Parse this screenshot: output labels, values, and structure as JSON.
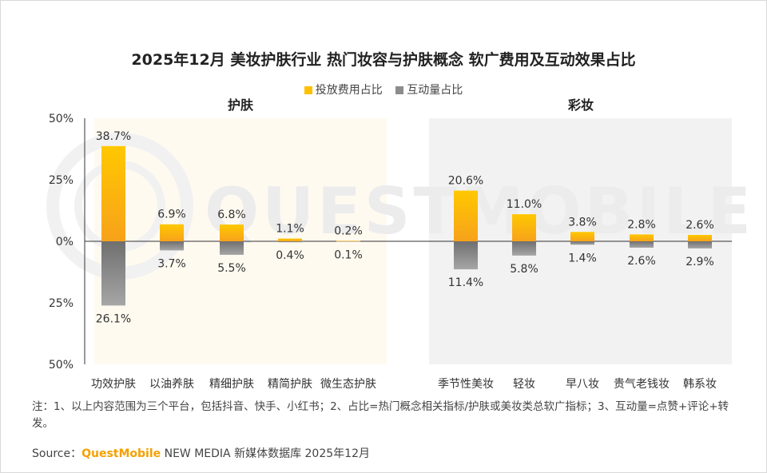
{
  "colors": {
    "spend": "#ffc000",
    "interaction": "#8c8c8c",
    "brand": "#f5a000",
    "skincare_bg": "#fffaf0",
    "makeup_bg": "#f2f2f2"
  },
  "chart_data": {
    "type": "bar",
    "title": "2025年12月 美妆护肤行业 热门妆容与护肤概念 软广费用及互动效果占比",
    "series": [
      {
        "name": "投放费用占比",
        "values": [
          38.7,
          6.9,
          6.8,
          1.1,
          0.2,
          20.6,
          11.0,
          3.8,
          2.8,
          2.6
        ]
      },
      {
        "name": "互动量占比",
        "values": [
          26.1,
          3.7,
          5.5,
          0.4,
          0.1,
          11.4,
          5.8,
          1.4,
          2.6,
          2.9
        ]
      }
    ],
    "categories": [
      "功效护肤",
      "以油养肤",
      "精细护肤",
      "精简护肤",
      "微生态护肤",
      "季节性美妆",
      "轻妆",
      "早八妆",
      "贵气老钱妆",
      "韩系妆"
    ],
    "groups": [
      {
        "name": "护肤",
        "count": 5
      },
      {
        "name": "彩妆",
        "count": 5
      }
    ],
    "y_ticks": [
      "50%",
      "25%",
      "0%",
      "25%",
      "50%"
    ],
    "ylim": [
      -50,
      50
    ],
    "notes": "投放费用占比 plotted upward, 互动量占比 plotted downward (mirrored)",
    "legend_position": "top-center"
  },
  "watermark": "QUESTMOBILE",
  "footer": {
    "note": "注：1、以上内容范围为三个平台，包括抖音、快手、小红书；2、占比=热门概念相关指标/护肤或美妆类总软广指标；3、互动量=点赞+评论+转发。",
    "source_label": "Source：",
    "source_brand": "QuestMobile",
    "source_rest": " NEW MEDIA 新媒体数据库 2025年12月"
  }
}
